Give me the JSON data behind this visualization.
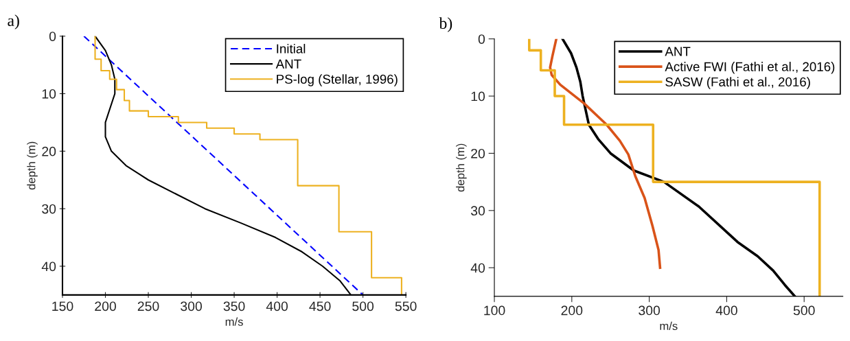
{
  "chart_data": [
    {
      "type": "line",
      "annotations": [
        "a)"
      ],
      "xlabel": "m/s",
      "ylabel": "depth (m)",
      "xlim": [
        150,
        550
      ],
      "xticks": [
        150,
        200,
        250,
        300,
        350,
        400,
        450,
        500,
        550
      ],
      "ylim": [
        45,
        0
      ],
      "yticks": [
        0,
        10,
        20,
        30,
        40
      ],
      "grid": false,
      "legend": "top right",
      "marker": "none",
      "series": [
        {
          "name": "Initial",
          "color": "#0000ff",
          "line_style": "dashed",
          "x": [
            175,
            500
          ],
          "values": [
            0,
            45
          ]
        },
        {
          "name": "ANT",
          "color": "#000000",
          "line_style": "solid",
          "x": [
            188,
            200,
            207,
            211,
            211,
            200,
            200,
            207,
            224,
            250,
            283,
            316,
            358,
            398,
            429,
            453,
            473,
            486
          ],
          "values": [
            0,
            2.5,
            5,
            7.5,
            10,
            15,
            17.5,
            20,
            22.5,
            25,
            27.5,
            30,
            32.5,
            35,
            37.5,
            40,
            42.5,
            45
          ]
        },
        {
          "name": "PS-log (Stellar, 1996)",
          "color": "#edb120",
          "line_style": "solid",
          "x": [
            188,
            188,
            195,
            195,
            205,
            205,
            213,
            213,
            222,
            222,
            228,
            228,
            250,
            250,
            285,
            285,
            318,
            318,
            350,
            350,
            380,
            380,
            424,
            424,
            472,
            472,
            510,
            510,
            545,
            545
          ],
          "values": [
            0,
            4,
            4,
            6,
            6,
            7.5,
            7.5,
            9.3,
            9.3,
            11.2,
            11.2,
            13,
            13,
            14,
            14,
            15,
            15,
            16,
            16,
            17,
            17,
            18,
            18,
            26,
            26,
            34,
            34,
            42,
            42,
            45
          ]
        }
      ]
    },
    {
      "type": "line",
      "annotations": [
        "b)"
      ],
      "xlabel": "m/s",
      "ylabel": "depth (m)",
      "xlim": [
        100,
        550
      ],
      "xticks": [
        100,
        200,
        300,
        400,
        500
      ],
      "ylim": [
        45,
        0
      ],
      "yticks": [
        0,
        10,
        20,
        30,
        40
      ],
      "grid": false,
      "legend": "top right",
      "marker": "none",
      "series": [
        {
          "name": "ANT",
          "color": "#000000",
          "line_style": "solid",
          "x": [
            188,
            199,
            206,
            211,
            214,
            218,
            222,
            234,
            250,
            280,
            319,
            364,
            414,
            440,
            460,
            475,
            488
          ],
          "values": [
            0,
            2.5,
            5,
            7.5,
            10,
            12.5,
            15,
            17.5,
            20,
            23,
            25,
            29.3,
            35.5,
            38,
            40.5,
            43,
            45
          ]
        },
        {
          "name": "Active FWI (Fathi et al., 2016)",
          "color": "#d95319",
          "line_style": "solid",
          "x": [
            180,
            175,
            172,
            174,
            185,
            216,
            245,
            262,
            273,
            282,
            294,
            304,
            312,
            314
          ],
          "values": [
            0,
            3,
            5,
            6.3,
            8,
            11.3,
            15,
            17.8,
            20.2,
            24,
            27.8,
            32.6,
            36.9,
            40
          ]
        },
        {
          "name": "SASW (Fathi et al., 2016)",
          "color": "#edb120",
          "line_style": "solid",
          "x": [
            145,
            145,
            160,
            160,
            178,
            178,
            190,
            190,
            305,
            305,
            520,
            520
          ],
          "values": [
            0,
            2,
            2,
            5.5,
            5.5,
            10,
            10,
            15,
            15,
            25,
            25,
            45
          ]
        }
      ]
    }
  ]
}
